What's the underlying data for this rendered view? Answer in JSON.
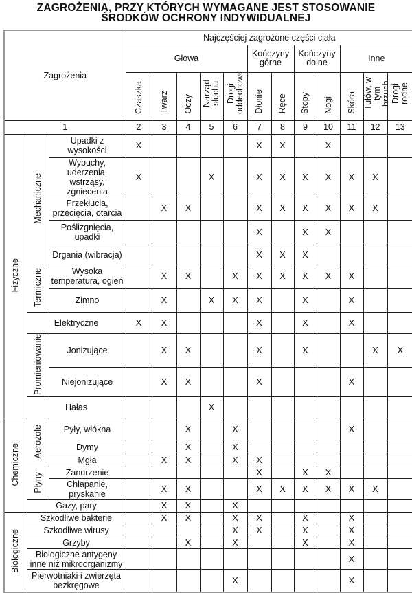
{
  "title": {
    "line1": "ZAGROŻENIA, PRZY KTÓRYCH WYMAGANE JEST STOSOWANIE",
    "line2": "ŚRODKÓW OCHRONY INDYWIDUALNEJ"
  },
  "header": {
    "hazards": "Zagrożenia",
    "body_parts": "Najczęściej zagrożone części ciała",
    "groups": [
      "Głowa",
      "Kończyny górne",
      "Kończyny dolne",
      "Inne"
    ],
    "columns": [
      "Czaszka",
      "Twarz",
      "Oczy",
      "Narząd słuchu",
      "Drogi oddechowe",
      "Dłonie",
      "Ręce",
      "Stopy",
      "Nogi",
      "Skóra",
      "Tułów, w tym brzuch",
      "Drogi rodne"
    ],
    "numbers": [
      "1",
      "2",
      "3",
      "4",
      "5",
      "6",
      "7",
      "8",
      "9",
      "10",
      "11",
      "12",
      "13"
    ]
  },
  "rows": [
    {
      "cat": "Fizyczne",
      "cat_span": 11,
      "sub": "Mechaniczne",
      "sub_span": 5,
      "label": "Upadki z wysokości",
      "marks": [
        "X",
        "",
        "",
        "",
        "",
        "X",
        "X",
        "",
        "X",
        "",
        "",
        ""
      ]
    },
    {
      "label": "Wybuchy, uderzenia, wstrząsy, zgniecenia",
      "marks": [
        "X",
        "",
        "",
        "X",
        "",
        "X",
        "X",
        "X",
        "X",
        "X",
        "X",
        ""
      ]
    },
    {
      "label": "Przekłucia, przecięcia, otarcia",
      "marks": [
        "",
        "X",
        "X",
        "",
        "",
        "X",
        "X",
        "X",
        "X",
        "X",
        "X",
        ""
      ]
    },
    {
      "label": "Poślizgnięcia, upadki",
      "marks": [
        "",
        "",
        "",
        "",
        "",
        "X",
        "",
        "X",
        "X",
        "",
        "",
        ""
      ]
    },
    {
      "label": "Drgania (wibracja)",
      "marks": [
        "",
        "",
        "",
        "",
        "",
        "X",
        "X",
        "X",
        "",
        "",
        "",
        ""
      ]
    },
    {
      "sub": "Termiczne",
      "sub_span": 2,
      "label": "Wysoka temperatura, ogień",
      "marks": [
        "",
        "X",
        "X",
        "",
        "X",
        "X",
        "X",
        "X",
        "X",
        "X",
        "",
        ""
      ]
    },
    {
      "label": "Zimno",
      "marks": [
        "",
        "X",
        "",
        "X",
        "X",
        "X",
        "",
        "X",
        "",
        "X",
        "",
        ""
      ]
    },
    {
      "wide": true,
      "label": "Elektryczne",
      "marks": [
        "X",
        "X",
        "",
        "",
        "",
        "X",
        "",
        "X",
        "",
        "X",
        "",
        ""
      ]
    },
    {
      "sub": "Promieniowanie",
      "sub_span": 2,
      "label": "Jonizujące",
      "marks": [
        "",
        "X",
        "X",
        "",
        "",
        "X",
        "",
        "X",
        "",
        "",
        "X",
        "X"
      ]
    },
    {
      "label": "Niejonizujące",
      "marks": [
        "",
        "X",
        "X",
        "",
        "",
        "X",
        "",
        "",
        "",
        "X",
        "",
        ""
      ]
    },
    {
      "wide": true,
      "label": "Hałas",
      "marks": [
        "",
        "",
        "",
        "X",
        "",
        "",
        "",
        "",
        "",
        "",
        "",
        ""
      ]
    },
    {
      "cat": "Chemiczne",
      "cat_span": 6,
      "sub": "Aerozole",
      "sub_span": 3,
      "label": "Pyły, włókna",
      "marks": [
        "",
        "",
        "X",
        "",
        "X",
        "",
        "",
        "",
        "",
        "X",
        "",
        ""
      ]
    },
    {
      "label": "Dymy",
      "marks": [
        "",
        "",
        "X",
        "",
        "X",
        "",
        "",
        "",
        "",
        "",
        "",
        ""
      ]
    },
    {
      "label": "Mgła",
      "marks": [
        "",
        "X",
        "X",
        "",
        "X",
        "X",
        "",
        "",
        "",
        "",
        "",
        ""
      ]
    },
    {
      "sub": "Płyny",
      "sub_span": 2,
      "label": "Zanurzenie",
      "marks": [
        "",
        "",
        "",
        "",
        "",
        "X",
        "",
        "X",
        "X",
        "",
        "",
        ""
      ]
    },
    {
      "label": "Chlapanie, pryskanie",
      "marks": [
        "",
        "X",
        "X",
        "",
        "",
        "X",
        "X",
        "X",
        "X",
        "X",
        "X",
        ""
      ]
    },
    {
      "wide": true,
      "label": "Gazy, pary",
      "marks": [
        "",
        "X",
        "X",
        "",
        "X",
        "",
        "",
        "",
        "",
        "",
        "",
        ""
      ]
    },
    {
      "cat": "Biologiczne",
      "cat_span": 5,
      "wide": true,
      "label": "Szkodliwe bakterie",
      "marks": [
        "",
        "X",
        "X",
        "",
        "X",
        "X",
        "",
        "X",
        "",
        "X",
        "",
        ""
      ]
    },
    {
      "wide": true,
      "label": "Szkodliwe wirusy",
      "marks": [
        "",
        "",
        "",
        "",
        "X",
        "X",
        "",
        "X",
        "",
        "X",
        "",
        ""
      ]
    },
    {
      "wide": true,
      "label": "Grzyby",
      "marks": [
        "",
        "",
        "X",
        "",
        "X",
        "",
        "",
        "X",
        "",
        "X",
        "",
        ""
      ]
    },
    {
      "wide": true,
      "label": "Biologiczne antygeny inne niż mikroorganizmy",
      "marks": [
        "",
        "",
        "",
        "",
        "",
        "",
        "",
        "",
        "",
        "X",
        "",
        ""
      ]
    },
    {
      "wide": true,
      "label": "Pierwotniaki i zwierzęta bezkręgowe",
      "marks": [
        "",
        "",
        "",
        "",
        "X",
        "",
        "",
        "",
        "",
        "X",
        "",
        ""
      ]
    }
  ]
}
